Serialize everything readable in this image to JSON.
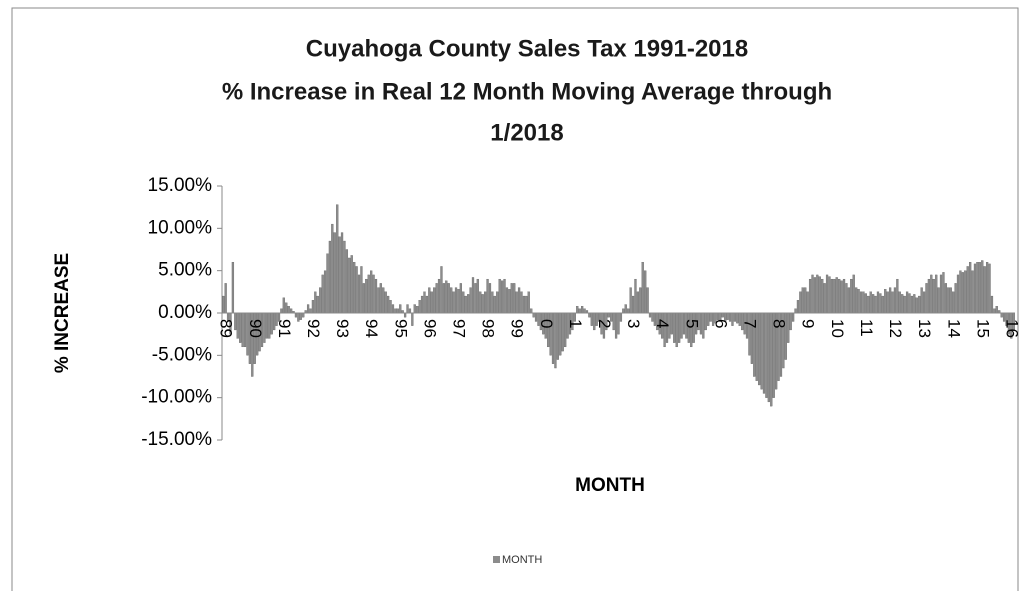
{
  "chart_data": {
    "type": "bar",
    "title": [
      "Cuyahoga County Sales Tax 1991-2018",
      "% Increase in Real 12 Month Moving Average through",
      "1/2018"
    ],
    "y_label": "% INCREASE",
    "x_label": "MONTH",
    "ylim": [
      -15,
      15
    ],
    "yticks": [
      {
        "value": 15,
        "label": "15.00%"
      },
      {
        "value": 10,
        "label": "10.00%"
      },
      {
        "value": 5,
        "label": "5.00%"
      },
      {
        "value": 0,
        "label": "0.00%"
      },
      {
        "value": -5,
        "label": "-5.00%"
      },
      {
        "value": -10,
        "label": "-10.00%"
      },
      {
        "value": -15,
        "label": "-15.00%"
      }
    ],
    "legend": "bottom",
    "categories": [
      "89",
      null,
      null,
      null,
      null,
      null,
      null,
      null,
      null,
      null,
      null,
      null,
      "90",
      null,
      null,
      null,
      null,
      null,
      null,
      null,
      null,
      null,
      null,
      null,
      "91",
      null,
      null,
      null,
      null,
      null,
      null,
      null,
      null,
      null,
      null,
      null,
      "92",
      null,
      null,
      null,
      null,
      null,
      null,
      null,
      null,
      null,
      null,
      null,
      "93",
      null,
      null,
      null,
      null,
      null,
      null,
      null,
      null,
      null,
      null,
      null,
      "94",
      null,
      null,
      null,
      null,
      null,
      null,
      null,
      null,
      null,
      null,
      null,
      "95",
      null,
      null,
      null,
      null,
      null,
      null,
      null,
      null,
      null,
      null,
      null,
      "96",
      null,
      null,
      null,
      null,
      null,
      null,
      null,
      null,
      null,
      null,
      null,
      "97",
      null,
      null,
      null,
      null,
      null,
      null,
      null,
      null,
      null,
      null,
      null,
      "98",
      null,
      null,
      null,
      null,
      null,
      null,
      null,
      null,
      null,
      null,
      null,
      "99",
      null,
      null,
      null,
      null,
      null,
      null,
      null,
      null,
      null,
      null,
      null,
      "0",
      null,
      null,
      null,
      null,
      null,
      null,
      null,
      null,
      null,
      null,
      null,
      "1",
      null,
      null,
      null,
      null,
      null,
      null,
      null,
      null,
      null,
      null,
      null,
      "2",
      null,
      null,
      null,
      null,
      null,
      null,
      null,
      null,
      null,
      null,
      null,
      "3",
      null,
      null,
      null,
      null,
      null,
      null,
      null,
      null,
      null,
      null,
      null,
      "4",
      null,
      null,
      null,
      null,
      null,
      null,
      null,
      null,
      null,
      null,
      null,
      "5",
      null,
      null,
      null,
      null,
      null,
      null,
      null,
      null,
      null,
      null,
      null,
      "6",
      null,
      null,
      null,
      null,
      null,
      null,
      null,
      null,
      null,
      null,
      null,
      "7",
      null,
      null,
      null,
      null,
      null,
      null,
      null,
      null,
      null,
      null,
      null,
      "8",
      null,
      null,
      null,
      null,
      null,
      null,
      null,
      null,
      null,
      null,
      null,
      "9",
      null,
      null,
      null,
      null,
      null,
      null,
      null,
      null,
      null,
      null,
      null,
      "10",
      null,
      null,
      null,
      null,
      null,
      null,
      null,
      null,
      null,
      null,
      null,
      "11",
      null,
      null,
      null,
      null,
      null,
      null,
      null,
      null,
      null,
      null,
      null,
      "12",
      null,
      null,
      null,
      null,
      null,
      null,
      null,
      null,
      null,
      null,
      null,
      "13",
      null,
      null,
      null,
      null,
      null,
      null,
      null,
      null,
      null,
      null,
      null,
      "14",
      null,
      null,
      null,
      null,
      null,
      null,
      null,
      null,
      null,
      null,
      null,
      "15",
      null,
      null,
      null,
      null,
      null,
      null,
      null,
      null,
      null,
      null,
      null,
      "16",
      null,
      null
    ],
    "series": [
      {
        "name": "MONTH",
        "color": "#8c8c8c",
        "values": [
          2,
          3.5,
          -1,
          -2.5,
          6,
          -2,
          -3,
          -3.5,
          -4,
          -4,
          -5,
          -6,
          -7.5,
          -6,
          -5,
          -4.5,
          -4,
          -3.5,
          -3,
          -3,
          -2.5,
          -2,
          -1.5,
          -1,
          0.5,
          1.8,
          1.2,
          0.8,
          0.5,
          0.2,
          -0.5,
          -1,
          -0.8,
          -0.5,
          0.3,
          1,
          0.5,
          1.5,
          2.5,
          2,
          3,
          4.5,
          5,
          7,
          8.5,
          10.5,
          9.5,
          12.8,
          9,
          9.5,
          8.5,
          7.5,
          6.5,
          6.8,
          6,
          5.5,
          4.5,
          5.5,
          3.5,
          4,
          4.5,
          5,
          4.5,
          4,
          3,
          3.5,
          3,
          2.5,
          2,
          1.5,
          1,
          0.5,
          0.5,
          1,
          0.3,
          -0.5,
          1,
          0.5,
          -1.5,
          1,
          0.8,
          1.5,
          2,
          2.5,
          2,
          3,
          2.5,
          3,
          3.5,
          4,
          5.5,
          3.5,
          3.8,
          3.5,
          3,
          2.5,
          3,
          2.8,
          3.5,
          2.5,
          2,
          2.2,
          3,
          4.2,
          3.5,
          4,
          2.5,
          2.2,
          2.5,
          4,
          3.5,
          2.5,
          2,
          2.5,
          4,
          3.8,
          4,
          3,
          2.8,
          3.5,
          3.5,
          2.5,
          3,
          2.5,
          2,
          2,
          2.5,
          0.5,
          -0.5,
          -1,
          -1.5,
          -2,
          -2.5,
          -3,
          -4,
          -5,
          -6,
          -6.5,
          -5.5,
          -5,
          -4.5,
          -4,
          -3,
          -2.5,
          -2,
          -1,
          0.8,
          0.5,
          0.8,
          0.5,
          0.3,
          -0.5,
          -1.5,
          -2,
          -1.5,
          -1,
          -2.5,
          -3,
          -2,
          -0.5,
          -1,
          -2,
          -3,
          -2.5,
          -1,
          0.5,
          1,
          0.5,
          3,
          2,
          4,
          2.5,
          3,
          6,
          5,
          3,
          -0.5,
          -1,
          -1.5,
          -2,
          -2.5,
          -3,
          -4,
          -3.5,
          -3,
          -2.5,
          -3.5,
          -4,
          -3.5,
          -3,
          -2.5,
          -3,
          -3.5,
          -4,
          -3.5,
          -2.5,
          -2,
          -2.5,
          -3,
          -2,
          -1.5,
          -1,
          -1.5,
          -1.2,
          -0.8,
          -1,
          -0.5,
          -1,
          -0.8,
          -1,
          -1.5,
          -1,
          -1.2,
          -1.5,
          -2,
          -2.5,
          -3,
          -5,
          -6,
          -7.5,
          -8,
          -8.5,
          -9,
          -9.5,
          -10,
          -10.5,
          -11,
          -10,
          -9,
          -8,
          -7.5,
          -6.5,
          -5.5,
          -3.5,
          -2,
          -1,
          0.5,
          1.5,
          2.5,
          3,
          3,
          2.5,
          4,
          4.5,
          4.2,
          4.5,
          4.3,
          4,
          3.5,
          4.5,
          4.3,
          4,
          4,
          4.2,
          4,
          3.8,
          4,
          3.5,
          3,
          4,
          4.5,
          3,
          2.8,
          2.5,
          2.5,
          2.3,
          2,
          2.5,
          2.2,
          2,
          2.5,
          2.3,
          2,
          2.8,
          2.5,
          3,
          2.5,
          3,
          4,
          2.5,
          2.2,
          2,
          2.5,
          2.3,
          2,
          2.2,
          1.8,
          2,
          3,
          2.5,
          3.5,
          4,
          4.5,
          4,
          4.5,
          3,
          4.5,
          4.8,
          3.5,
          3,
          3,
          2.5,
          3.5,
          4.5,
          5,
          4.8,
          5,
          5.5,
          6,
          5,
          5.8,
          6,
          6,
          6.2,
          5.5,
          6,
          5.8,
          2,
          0.5,
          0.8,
          0.3,
          -0.5,
          -1,
          -1.5,
          -2.5,
          -3,
          -2
        ]
      }
    ]
  }
}
